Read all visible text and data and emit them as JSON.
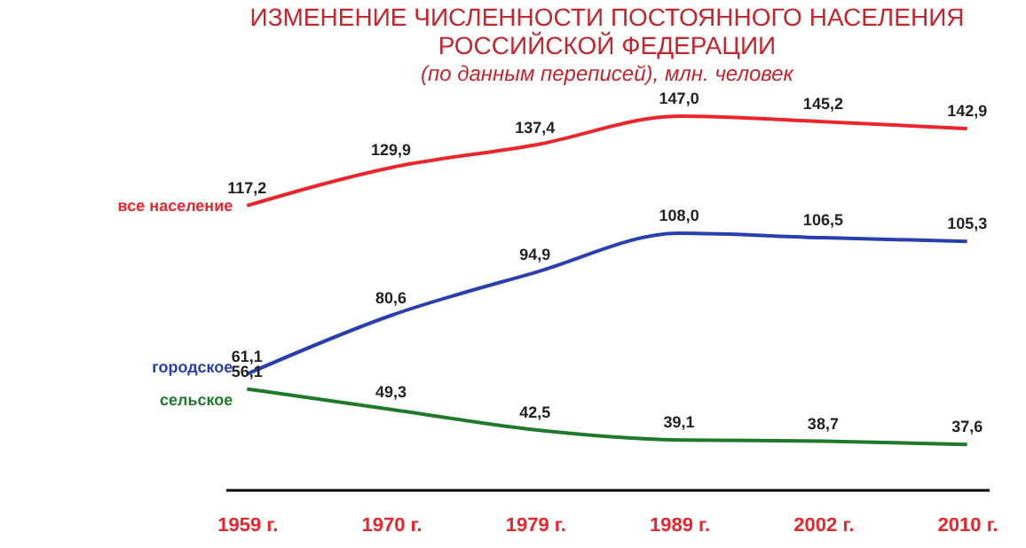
{
  "chart_data": {
    "type": "line",
    "title": [
      "ИЗМЕНЕНИЕ ЧИСЛЕННОСТИ ПОСТОЯННОГО НАСЕЛЕНИЯ",
      "РОССИЙСКОЙ ФЕДЕРАЦИИ"
    ],
    "subtitle": "(по данным переписей), млн. человек",
    "categories": [
      "1959 г.",
      "1970 г.",
      "1979 г.",
      "1989 г.",
      "2002 г.",
      "2010 г."
    ],
    "series": [
      {
        "name": "все население",
        "color": "#e8262c",
        "values": [
          117.2,
          129.9,
          137.4,
          147.0,
          145.2,
          142.9
        ],
        "value_labels": [
          "117,2",
          "129,9",
          "137,4",
          "147,0",
          "145,2",
          "142,9"
        ]
      },
      {
        "name": "городское",
        "color": "#2a3fae",
        "values": [
          61.1,
          80.6,
          94.9,
          108.0,
          106.5,
          105.3
        ],
        "value_labels": [
          "61,1",
          "80,6",
          "94,9",
          "108,0",
          "106,5",
          "105,3"
        ]
      },
      {
        "name": "сельское",
        "color": "#1e7a2a",
        "values": [
          56.1,
          49.3,
          42.5,
          39.1,
          38.7,
          37.6
        ],
        "value_labels": [
          "56,1",
          "49,3",
          "42,5",
          "39,1",
          "38,7",
          "37,6"
        ]
      }
    ],
    "legend": false,
    "grid": false,
    "marker": "none",
    "line_style": "solid"
  }
}
